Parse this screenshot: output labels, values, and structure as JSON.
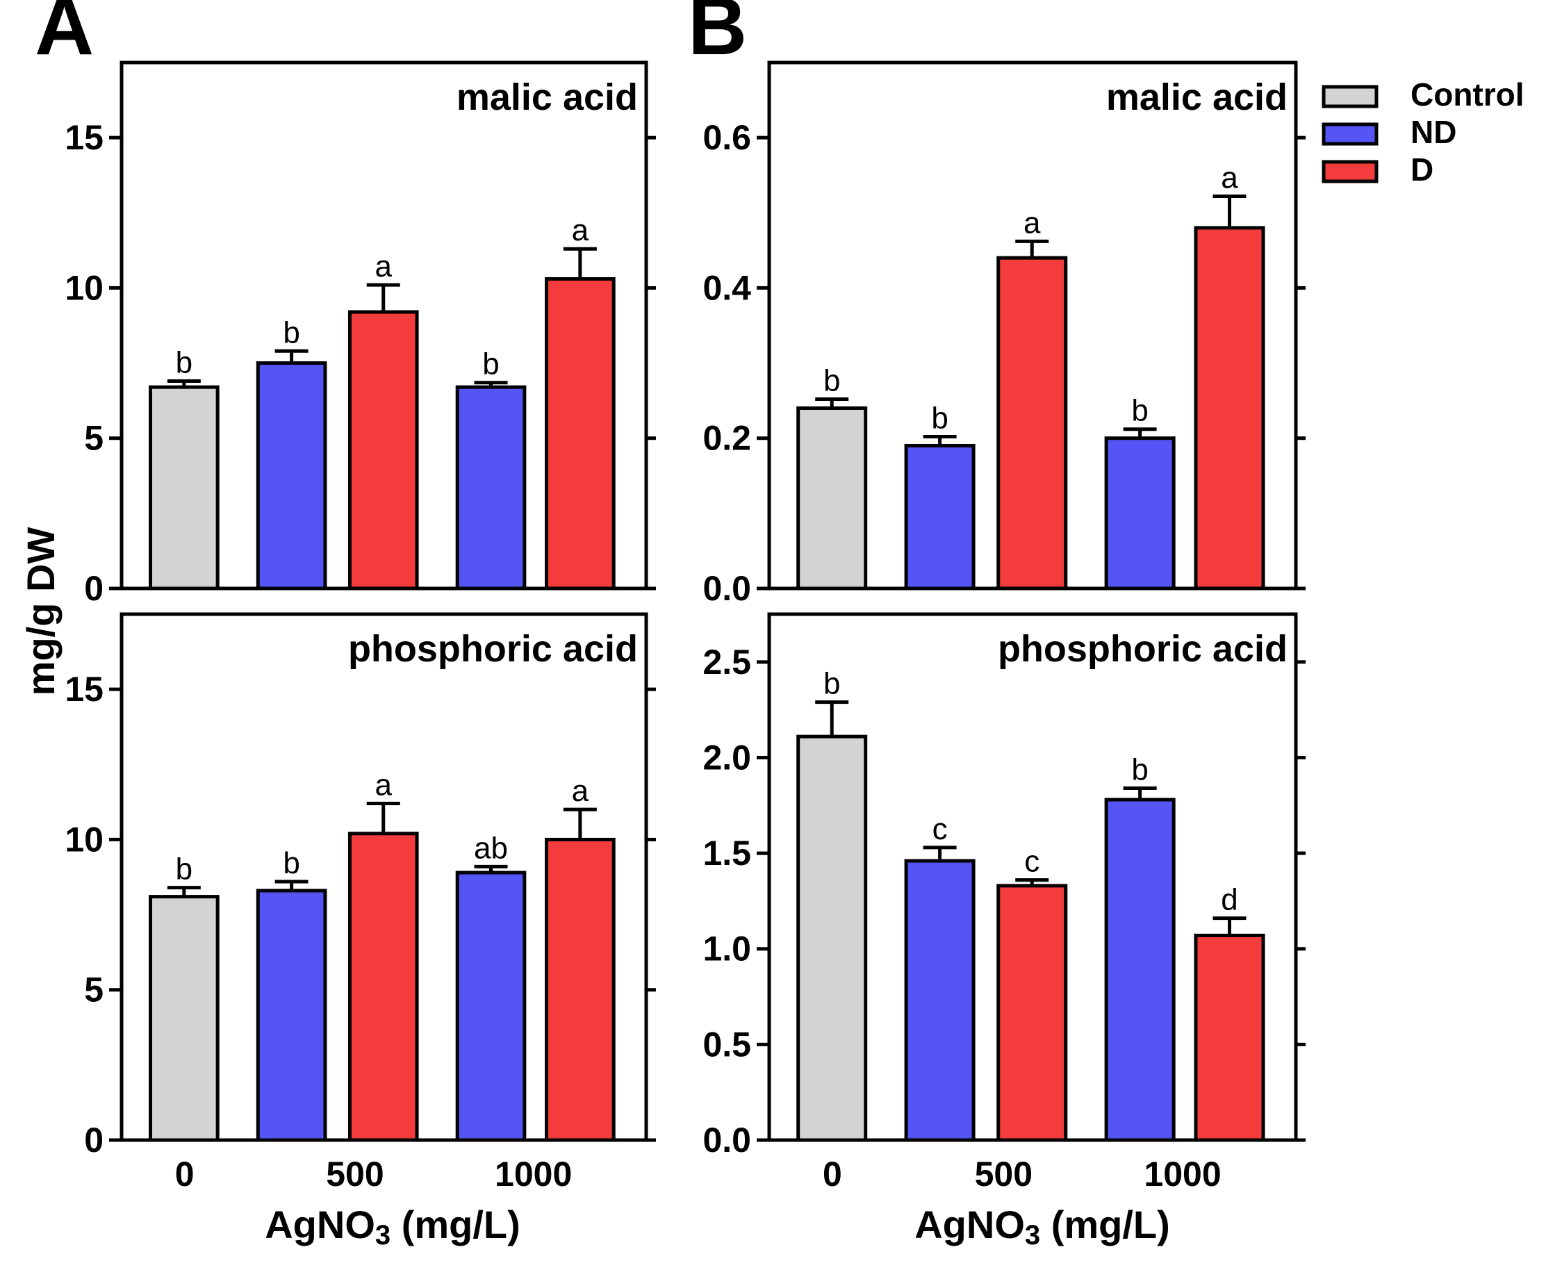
{
  "figure": {
    "ylabel": "mg/g DW",
    "xlabel_main": "AgNO",
    "xlabel_sub": "3",
    "xlabel_tail": " (mg/L)"
  },
  "legend": [
    {
      "label": "Control",
      "color": "#d3d3d3"
    },
    {
      "label": "ND",
      "color": "#5555f5"
    },
    {
      "label": "D",
      "color": "#f53c3c"
    }
  ],
  "chart_data": [
    {
      "type": "bar",
      "panel_letter": "A",
      "title": "malic acid",
      "categories": [
        "0",
        "500",
        "1000"
      ],
      "ylim": [
        0,
        17.5
      ],
      "yticks": [
        "0",
        "5",
        "10",
        "15"
      ],
      "ytick_values": [
        0,
        5,
        10,
        15
      ],
      "bars": [
        {
          "series": "Control",
          "category": "0",
          "value": 6.7,
          "error": 0.2,
          "sig": "b"
        },
        {
          "series": "ND",
          "category": "500",
          "value": 7.5,
          "error": 0.4,
          "sig": "b"
        },
        {
          "series": "D",
          "category": "500",
          "value": 9.2,
          "error": 0.9,
          "sig": "a"
        },
        {
          "series": "ND",
          "category": "1000",
          "value": 6.7,
          "error": 0.15,
          "sig": "b"
        },
        {
          "series": "D",
          "category": "1000",
          "value": 10.3,
          "error": 1.0,
          "sig": "a"
        }
      ]
    },
    {
      "type": "bar",
      "panel_letter": "",
      "title": "phosphoric acid",
      "categories": [
        "0",
        "500",
        "1000"
      ],
      "ylim": [
        0,
        17.5
      ],
      "yticks": [
        "0",
        "5",
        "10",
        "15"
      ],
      "ytick_values": [
        0,
        5,
        10,
        15
      ],
      "bars": [
        {
          "series": "Control",
          "category": "0",
          "value": 8.1,
          "error": 0.3,
          "sig": "b"
        },
        {
          "series": "ND",
          "category": "500",
          "value": 8.3,
          "error": 0.3,
          "sig": "b"
        },
        {
          "series": "D",
          "category": "500",
          "value": 10.2,
          "error": 1.0,
          "sig": "a"
        },
        {
          "series": "ND",
          "category": "1000",
          "value": 8.9,
          "error": 0.2,
          "sig": "ab"
        },
        {
          "series": "D",
          "category": "1000",
          "value": 10.0,
          "error": 1.0,
          "sig": "a"
        }
      ]
    },
    {
      "type": "bar",
      "panel_letter": "B",
      "title": "malic acid",
      "categories": [
        "0",
        "500",
        "1000"
      ],
      "ylim": [
        0,
        0.7
      ],
      "yticks": [
        "0.0",
        "0.2",
        "0.4",
        "0.6"
      ],
      "ytick_values": [
        0,
        0.2,
        0.4,
        0.6
      ],
      "bars": [
        {
          "series": "Control",
          "category": "0",
          "value": 0.24,
          "error": 0.012,
          "sig": "b"
        },
        {
          "series": "ND",
          "category": "500",
          "value": 0.19,
          "error": 0.012,
          "sig": "b"
        },
        {
          "series": "D",
          "category": "500",
          "value": 0.44,
          "error": 0.022,
          "sig": "a"
        },
        {
          "series": "ND",
          "category": "1000",
          "value": 0.2,
          "error": 0.012,
          "sig": "b"
        },
        {
          "series": "D",
          "category": "1000",
          "value": 0.48,
          "error": 0.042,
          "sig": "a"
        }
      ]
    },
    {
      "type": "bar",
      "panel_letter": "",
      "title": "phosphoric acid",
      "categories": [
        "0",
        "500",
        "1000"
      ],
      "ylim": [
        0,
        2.75
      ],
      "yticks": [
        "0.0",
        "0.5",
        "1.0",
        "1.5",
        "2.0",
        "2.5"
      ],
      "ytick_values": [
        0,
        0.5,
        1.0,
        1.5,
        2.0,
        2.5
      ],
      "bars": [
        {
          "series": "Control",
          "category": "0",
          "value": 2.11,
          "error": 0.18,
          "sig": "b"
        },
        {
          "series": "ND",
          "category": "500",
          "value": 1.46,
          "error": 0.07,
          "sig": "c"
        },
        {
          "series": "D",
          "category": "500",
          "value": 1.33,
          "error": 0.03,
          "sig": "c"
        },
        {
          "series": "ND",
          "category": "1000",
          "value": 1.78,
          "error": 0.06,
          "sig": "b"
        },
        {
          "series": "D",
          "category": "1000",
          "value": 1.07,
          "error": 0.09,
          "sig": "d"
        }
      ]
    }
  ]
}
